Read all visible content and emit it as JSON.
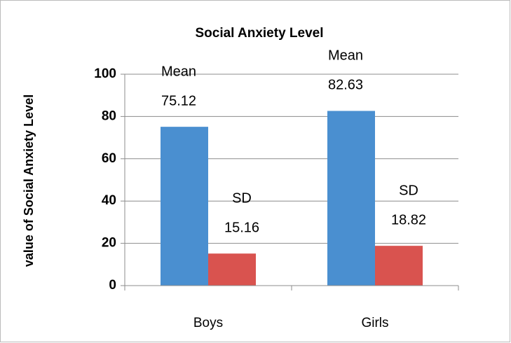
{
  "chart_data": {
    "type": "bar",
    "title": "Social Anxiety  Level",
    "y_label": "value of Social Anxiety Level",
    "categories": [
      "Boys",
      "Girls"
    ],
    "series": [
      {
        "name": "Mean",
        "color": "#4a8fd0",
        "values": [
          75.12,
          82.63
        ]
      },
      {
        "name": "SD",
        "color": "#d9534f",
        "values": [
          15.16,
          18.82
        ]
      }
    ],
    "ylim": [
      0,
      100
    ],
    "yticks": [
      0,
      20,
      40,
      60,
      80,
      100
    ],
    "grid": true
  }
}
